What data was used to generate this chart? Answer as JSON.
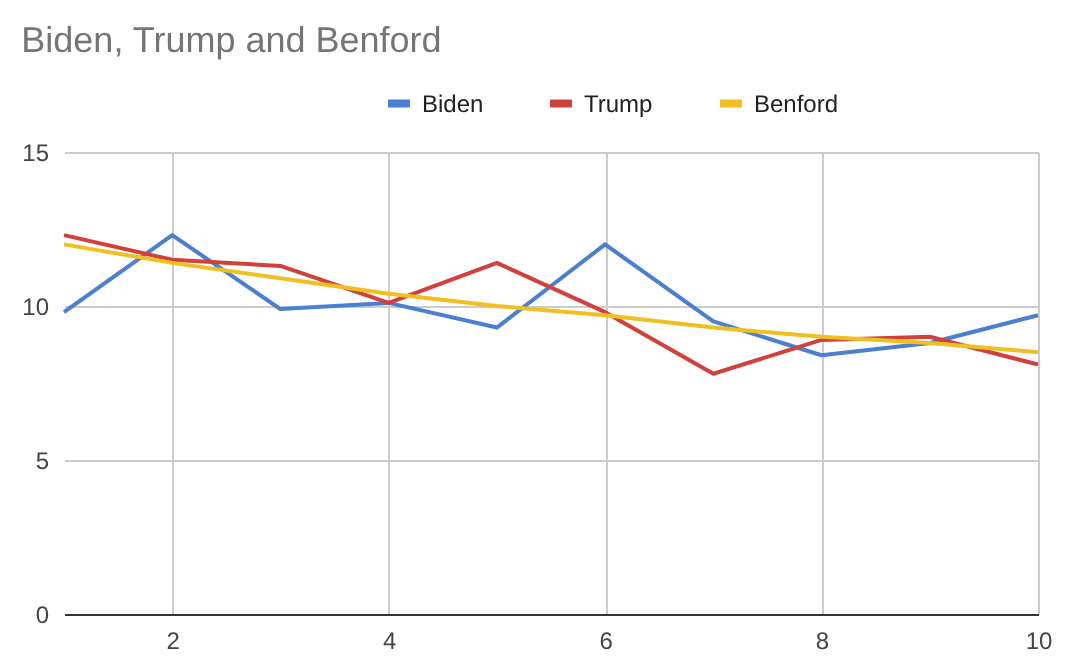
{
  "chart_data": {
    "type": "line",
    "title": "Biden, Trump and Benford",
    "x": [
      1,
      2,
      3,
      4,
      5,
      6,
      7,
      8,
      9,
      10
    ],
    "series": [
      {
        "name": "Biden",
        "color": "#4a7fd1",
        "values": [
          9.8,
          12.3,
          9.9,
          10.1,
          9.3,
          12.0,
          9.5,
          8.4,
          8.8,
          9.7
        ]
      },
      {
        "name": "Trump",
        "color": "#d0413c",
        "values": [
          12.3,
          11.5,
          11.3,
          10.1,
          11.4,
          9.8,
          7.8,
          8.9,
          9.0,
          8.1
        ]
      },
      {
        "name": "Benford",
        "color": "#f0c020",
        "values": [
          12.0,
          11.4,
          10.9,
          10.4,
          10.0,
          9.7,
          9.3,
          9.0,
          8.8,
          8.5
        ]
      }
    ],
    "xlim": [
      1,
      10
    ],
    "xticks": [
      2,
      4,
      6,
      8,
      10
    ],
    "ylim": [
      0,
      15
    ],
    "yticks": [
      0,
      5,
      10,
      15
    ],
    "grid": true,
    "legend": "top",
    "marker": "none",
    "line_style": "solid"
  }
}
